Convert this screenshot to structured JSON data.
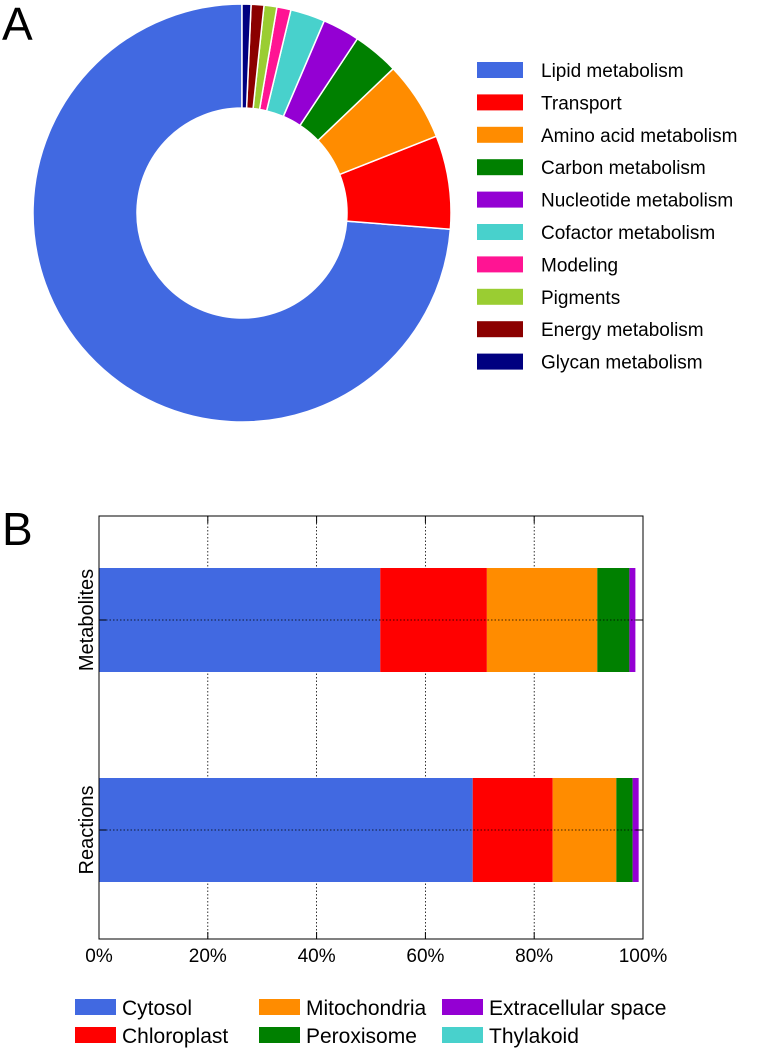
{
  "chart_data": [
    {
      "panel": "A",
      "type": "pie",
      "donut": true,
      "legend": "right",
      "categories": [
        "Lipid metabolism",
        "Transport",
        "Amino acid metabolism",
        "Carbon metabolism",
        "Nucleotide metabolism",
        "Cofactor metabolism",
        "Modeling",
        "Pigments",
        "Energy metabolism",
        "Glycan metabolism"
      ],
      "values": [
        74.5,
        7.3,
        6.2,
        3.6,
        2.9,
        2.7,
        1.1,
        1.0,
        1.0,
        0.7
      ],
      "colors": [
        "#4169e1",
        "#ff0000",
        "#ff8c00",
        "#008000",
        "#9400d3",
        "#48d1cc",
        "#ff1493",
        "#9acd32",
        "#8b0000",
        "#000080"
      ]
    },
    {
      "panel": "B",
      "type": "bar",
      "orientation": "horizontal",
      "stacked": true,
      "grid": true,
      "legend": "bottom",
      "categories": [
        "Metabolites",
        "Reactions"
      ],
      "xlim": [
        0,
        100
      ],
      "xticks": [
        "0%",
        "20%",
        "40%",
        "60%",
        "80%",
        "100%"
      ],
      "series": [
        {
          "name": "Cytosol",
          "color": "#4169e1",
          "values": [
            51.7,
            68.7
          ]
        },
        {
          "name": "Chloroplast",
          "color": "#ff0000",
          "values": [
            19.6,
            14.7
          ]
        },
        {
          "name": "Mitochondria",
          "color": "#ff8c00",
          "values": [
            20.3,
            11.7
          ]
        },
        {
          "name": "Peroxisome",
          "color": "#008000",
          "values": [
            5.9,
            3.0
          ]
        },
        {
          "name": "Extracellular space",
          "color": "#9400d3",
          "values": [
            1.1,
            1.1
          ]
        },
        {
          "name": "Thylakoid",
          "color": "#48d1cc",
          "values": [
            0.0,
            0.0
          ]
        }
      ]
    }
  ],
  "labels": {
    "panel_a": "A",
    "panel_b": "B"
  }
}
